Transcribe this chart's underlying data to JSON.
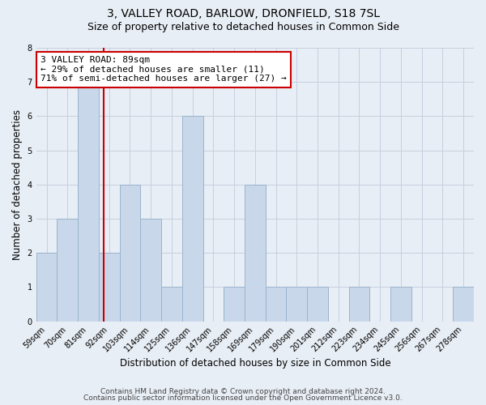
{
  "title": "3, VALLEY ROAD, BARLOW, DRONFIELD, S18 7SL",
  "subtitle": "Size of property relative to detached houses in Common Side",
  "xlabel": "Distribution of detached houses by size in Common Side",
  "ylabel": "Number of detached properties",
  "bin_labels": [
    "59sqm",
    "70sqm",
    "81sqm",
    "92sqm",
    "103sqm",
    "114sqm",
    "125sqm",
    "136sqm",
    "147sqm",
    "158sqm",
    "169sqm",
    "179sqm",
    "190sqm",
    "201sqm",
    "212sqm",
    "223sqm",
    "234sqm",
    "245sqm",
    "256sqm",
    "267sqm",
    "278sqm"
  ],
  "bar_heights": [
    2,
    3,
    7,
    2,
    4,
    3,
    1,
    6,
    0,
    1,
    4,
    1,
    1,
    1,
    0,
    1,
    0,
    1,
    0,
    0,
    1
  ],
  "bar_color": "#c8d8ea",
  "bar_edgecolor": "#9ab4cc",
  "grid_color": "#c5d0de",
  "background_color": "#e8eef5",
  "vline_color": "#cc0000",
  "annotation_line1": "3 VALLEY ROAD: 89sqm",
  "annotation_line2": "← 29% of detached houses are smaller (11)",
  "annotation_line3": "71% of semi-detached houses are larger (27) →",
  "annotation_boxcolor": "white",
  "annotation_edgecolor": "#cc0000",
  "ylim": [
    0,
    8
  ],
  "yticks": [
    0,
    1,
    2,
    3,
    4,
    5,
    6,
    7,
    8
  ],
  "footer1": "Contains HM Land Registry data © Crown copyright and database right 2024.",
  "footer2": "Contains public sector information licensed under the Open Government Licence v3.0.",
  "title_fontsize": 10,
  "subtitle_fontsize": 9,
  "axis_label_fontsize": 8.5,
  "tick_fontsize": 7,
  "footer_fontsize": 6.5,
  "annotation_fontsize": 8
}
